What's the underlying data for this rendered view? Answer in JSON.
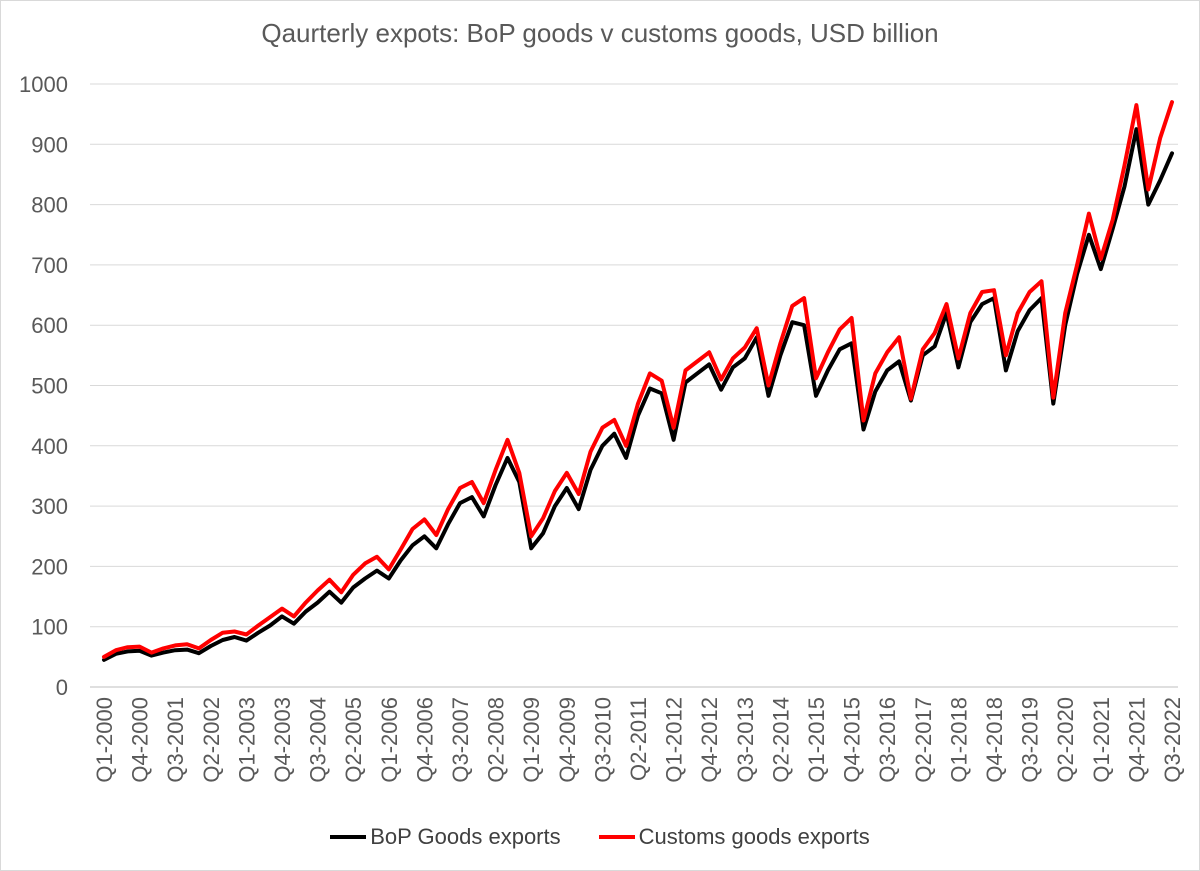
{
  "chart_data": {
    "type": "line",
    "title": "Qaurterly expots: BoP goods v customs goods, USD billion",
    "xlabel": "",
    "ylabel": "",
    "ylim": [
      0,
      1000
    ],
    "yticks": [
      0,
      100,
      200,
      300,
      400,
      500,
      600,
      700,
      800,
      900,
      1000
    ],
    "grid": true,
    "legend_position": "bottom",
    "x_tick_labels": [
      "Q1-2000",
      "Q4-2000",
      "Q3-2001",
      "Q2-2002",
      "Q1-2003",
      "Q4-2003",
      "Q3-2004",
      "Q2-2005",
      "Q1-2006",
      "Q4-2006",
      "Q3-2007",
      "Q2-2008",
      "Q1-2009",
      "Q4-2009",
      "Q3-2010",
      "Q2-2011",
      "Q1-2012",
      "Q4-2012",
      "Q3-2013",
      "Q2-2014",
      "Q1-2015",
      "Q4-2015",
      "Q3-2016",
      "Q2-2017",
      "Q1-2018",
      "Q4-2018",
      "Q3-2019",
      "Q2-2020",
      "Q1-2021",
      "Q4-2021",
      "Q3-2022"
    ],
    "x": [
      "Q1-2000",
      "Q2-2000",
      "Q3-2000",
      "Q4-2000",
      "Q1-2001",
      "Q2-2001",
      "Q3-2001",
      "Q4-2001",
      "Q1-2002",
      "Q2-2002",
      "Q3-2002",
      "Q4-2002",
      "Q1-2003",
      "Q2-2003",
      "Q3-2003",
      "Q4-2003",
      "Q1-2004",
      "Q2-2004",
      "Q3-2004",
      "Q4-2004",
      "Q1-2005",
      "Q2-2005",
      "Q3-2005",
      "Q4-2005",
      "Q1-2006",
      "Q2-2006",
      "Q3-2006",
      "Q4-2006",
      "Q1-2007",
      "Q2-2007",
      "Q3-2007",
      "Q4-2007",
      "Q1-2008",
      "Q2-2008",
      "Q3-2008",
      "Q4-2008",
      "Q1-2009",
      "Q2-2009",
      "Q3-2009",
      "Q4-2009",
      "Q1-2010",
      "Q2-2010",
      "Q3-2010",
      "Q4-2010",
      "Q1-2011",
      "Q2-2011",
      "Q3-2011",
      "Q4-2011",
      "Q1-2012",
      "Q2-2012",
      "Q3-2012",
      "Q4-2012",
      "Q1-2013",
      "Q2-2013",
      "Q3-2013",
      "Q4-2013",
      "Q1-2014",
      "Q2-2014",
      "Q3-2014",
      "Q4-2014",
      "Q1-2015",
      "Q2-2015",
      "Q3-2015",
      "Q4-2015",
      "Q1-2016",
      "Q2-2016",
      "Q3-2016",
      "Q4-2016",
      "Q1-2017",
      "Q2-2017",
      "Q3-2017",
      "Q4-2017",
      "Q1-2018",
      "Q2-2018",
      "Q3-2018",
      "Q4-2018",
      "Q1-2019",
      "Q2-2019",
      "Q3-2019",
      "Q4-2019",
      "Q1-2020",
      "Q2-2020",
      "Q3-2020",
      "Q4-2020",
      "Q1-2021",
      "Q2-2021",
      "Q3-2021",
      "Q4-2021",
      "Q1-2022",
      "Q2-2022",
      "Q3-2022"
    ],
    "series": [
      {
        "name": "BoP Goods exports",
        "color": "#000000",
        "values": [
          45,
          55,
          59,
          60,
          52,
          57,
          61,
          62,
          56,
          68,
          78,
          83,
          77,
          90,
          102,
          117,
          105,
          125,
          140,
          158,
          140,
          165,
          180,
          193,
          180,
          210,
          235,
          250,
          230,
          270,
          305,
          315,
          283,
          335,
          380,
          340,
          230,
          255,
          300,
          330,
          295,
          360,
          400,
          420,
          380,
          450,
          495,
          487,
          410,
          505,
          520,
          535,
          493,
          530,
          545,
          580,
          483,
          550,
          605,
          600,
          483,
          525,
          560,
          570,
          427,
          490,
          525,
          540,
          475,
          550,
          565,
          620,
          530,
          605,
          635,
          645,
          525,
          590,
          625,
          645,
          470,
          600,
          685,
          750,
          693,
          760,
          830,
          925,
          800,
          840,
          885
        ]
      },
      {
        "name": "Customs goods exports",
        "color": "#ff0000",
        "values": [
          50,
          61,
          66,
          67,
          57,
          64,
          69,
          71,
          64,
          78,
          90,
          92,
          87,
          102,
          116,
          130,
          117,
          140,
          160,
          178,
          157,
          186,
          205,
          216,
          195,
          228,
          262,
          278,
          252,
          295,
          330,
          340,
          305,
          360,
          410,
          355,
          250,
          280,
          325,
          355,
          320,
          390,
          430,
          443,
          400,
          470,
          520,
          508,
          430,
          525,
          540,
          555,
          510,
          545,
          563,
          595,
          500,
          570,
          632,
          645,
          512,
          555,
          593,
          612,
          442,
          520,
          555,
          580,
          478,
          560,
          587,
          635,
          545,
          620,
          655,
          658,
          550,
          620,
          655,
          673,
          480,
          620,
          700,
          785,
          710,
          775,
          865,
          965,
          825,
          910,
          970
        ]
      }
    ]
  }
}
